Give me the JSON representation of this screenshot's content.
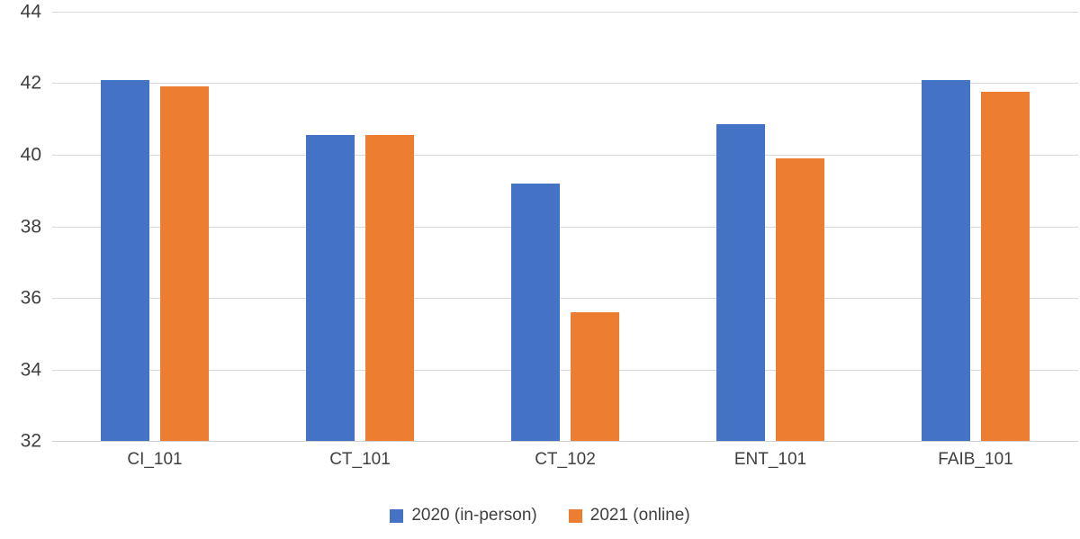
{
  "chart_data": {
    "type": "bar",
    "title": "",
    "xlabel": "",
    "ylabel": "",
    "categories": [
      "CI_101",
      "CT_101",
      "CT_102",
      "ENT_101",
      "FAIB_101"
    ],
    "series": [
      {
        "name": "2020 (in-person)",
        "color": "#4472C4",
        "values": [
          42.1,
          40.55,
          39.2,
          40.85,
          42.1
        ]
      },
      {
        "name": "2021 (online)",
        "color": "#ED7D31",
        "values": [
          41.9,
          40.55,
          35.6,
          39.9,
          41.75
        ]
      }
    ],
    "ylim": [
      32,
      44
    ],
    "yticks": [
      32,
      34,
      36,
      38,
      40,
      42,
      44
    ],
    "grid": true,
    "legend_position": "bottom",
    "colors": {
      "gridline": "#D9D9D9",
      "axis_line": "#D2D2D2",
      "tick_text": "#404040",
      "background": "#FFFFFF"
    }
  }
}
